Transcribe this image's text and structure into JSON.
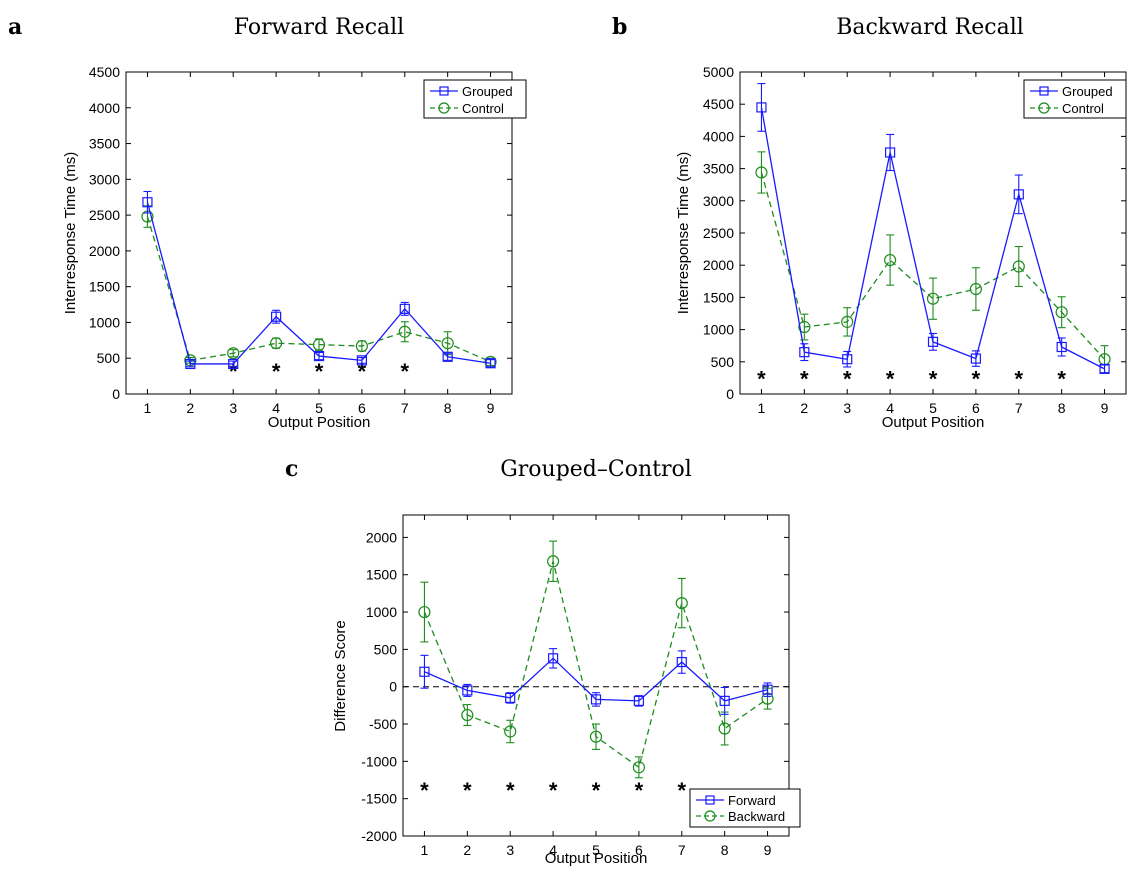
{
  "colors": {
    "blue": "#1a1aff",
    "green": "#1e8c1e",
    "axis": "#000000",
    "zero": "#000000"
  },
  "chart_data": [
    {
      "panel_label": "a",
      "type": "line",
      "title": "Forward Recall",
      "xlabel": "Output Position",
      "ylabel": "Interresponse Time (ms)",
      "x": [
        1,
        2,
        3,
        4,
        5,
        6,
        7,
        8,
        9
      ],
      "xlim": [
        0.5,
        9.5
      ],
      "ylim": [
        0,
        4500
      ],
      "yticks": [
        0,
        500,
        1000,
        1500,
        2000,
        2500,
        3000,
        3500,
        4000,
        4500
      ],
      "xticks": [
        1,
        2,
        3,
        4,
        5,
        6,
        7,
        8,
        9
      ],
      "legend": {
        "position": "top-right"
      },
      "zero_line": false,
      "series": [
        {
          "name": "Grouped",
          "color": "blue",
          "marker": "square",
          "dash": false,
          "values": [
            2680,
            420,
            420,
            1080,
            530,
            470,
            1190,
            520,
            430
          ],
          "errors": [
            150,
            40,
            40,
            90,
            50,
            40,
            90,
            50,
            50
          ]
        },
        {
          "name": "Control",
          "color": "green",
          "marker": "circle",
          "dash": true,
          "values": [
            2480,
            470,
            570,
            710,
            690,
            670,
            870,
            710,
            450
          ],
          "errors": [
            150,
            40,
            50,
            70,
            80,
            70,
            140,
            160,
            50
          ]
        }
      ],
      "stars": {
        "symbol": "*",
        "y": 380,
        "at": [
          3,
          4,
          5,
          6,
          7
        ]
      }
    },
    {
      "panel_label": "b",
      "type": "line",
      "title": "Backward Recall",
      "xlabel": "Output Position",
      "ylabel": "Interresponse Time (ms)",
      "x": [
        1,
        2,
        3,
        4,
        5,
        6,
        7,
        8,
        9
      ],
      "xlim": [
        0.5,
        9.5
      ],
      "ylim": [
        0,
        5000
      ],
      "yticks": [
        0,
        500,
        1000,
        1500,
        2000,
        2500,
        3000,
        3500,
        4000,
        4500,
        5000
      ],
      "xticks": [
        1,
        2,
        3,
        4,
        5,
        6,
        7,
        8,
        9
      ],
      "legend": {
        "position": "top-right"
      },
      "zero_line": false,
      "series": [
        {
          "name": "Grouped",
          "color": "blue",
          "marker": "square",
          "dash": false,
          "values": [
            4450,
            650,
            540,
            3750,
            810,
            550,
            3100,
            730,
            390
          ],
          "errors": [
            370,
            130,
            120,
            280,
            130,
            120,
            300,
            140,
            60
          ]
        },
        {
          "name": "Control",
          "color": "green",
          "marker": "circle",
          "dash": true,
          "values": [
            3440,
            1040,
            1120,
            2080,
            1480,
            1630,
            1980,
            1270,
            540
          ],
          "errors": [
            320,
            200,
            220,
            390,
            320,
            330,
            310,
            240,
            210
          ]
        }
      ],
      "stars": {
        "symbol": "*",
        "y": 300,
        "at": [
          1,
          2,
          3,
          4,
          5,
          6,
          7,
          8
        ]
      }
    },
    {
      "panel_label": "c",
      "type": "line",
      "title": "Grouped–Control",
      "xlabel": "Output Position",
      "ylabel": "Difference Score",
      "x": [
        1,
        2,
        3,
        4,
        5,
        6,
        7,
        8,
        9
      ],
      "xlim": [
        0.5,
        9.5
      ],
      "ylim": [
        -2000,
        2300
      ],
      "yticks": [
        -2000,
        -1500,
        -1000,
        -500,
        0,
        500,
        1000,
        1500,
        2000
      ],
      "xticks": [
        1,
        2,
        3,
        4,
        5,
        6,
        7,
        8,
        9
      ],
      "legend": {
        "position": "bottom-right"
      },
      "zero_line": true,
      "series": [
        {
          "name": "Forward",
          "color": "blue",
          "marker": "square",
          "dash": false,
          "values": [
            200,
            -50,
            -150,
            380,
            -170,
            -190,
            330,
            -190,
            -40
          ],
          "errors": [
            220,
            80,
            70,
            130,
            90,
            70,
            150,
            180,
            90
          ]
        },
        {
          "name": "Backward",
          "color": "green",
          "marker": "circle",
          "dash": true,
          "values": [
            1000,
            -380,
            -600,
            1680,
            -670,
            -1080,
            1120,
            -560,
            -160
          ],
          "errors": [
            400,
            140,
            150,
            270,
            170,
            140,
            330,
            220,
            140
          ]
        }
      ],
      "stars": {
        "symbol": "*",
        "y": -1330,
        "at": [
          1,
          2,
          3,
          4,
          5,
          6,
          7
        ]
      }
    }
  ]
}
